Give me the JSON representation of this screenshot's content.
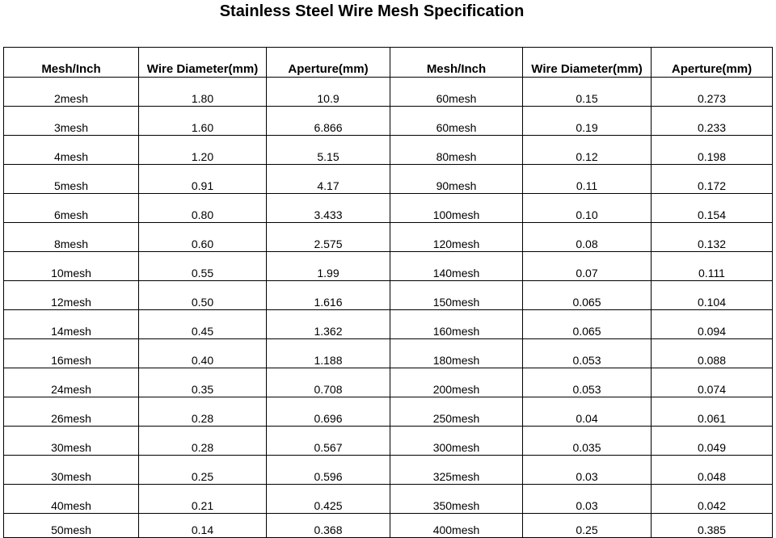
{
  "title": "Stainless Steel Wire Mesh Specification",
  "headers": [
    "Mesh/Inch",
    "Wire Diameter(mm)",
    "Aperture(mm)",
    "Mesh/Inch",
    "Wire Diameter(mm)",
    "Aperture(mm)"
  ],
  "rows": [
    [
      "2mesh",
      "1.80",
      "10.9",
      "60mesh",
      "0.15",
      "0.273"
    ],
    [
      "3mesh",
      "1.60",
      "6.866",
      "60mesh",
      "0.19",
      "0.233"
    ],
    [
      "4mesh",
      "1.20",
      "5.15",
      "80mesh",
      "0.12",
      "0.198"
    ],
    [
      "5mesh",
      "0.91",
      "4.17",
      "90mesh",
      "0.11",
      "0.172"
    ],
    [
      "6mesh",
      "0.80",
      "3.433",
      "100mesh",
      "0.10",
      "0.154"
    ],
    [
      "8mesh",
      "0.60",
      "2.575",
      "120mesh",
      "0.08",
      "0.132"
    ],
    [
      "10mesh",
      "0.55",
      "1.99",
      "140mesh",
      "0.07",
      "0.111"
    ],
    [
      "12mesh",
      "0.50",
      "1.616",
      "150mesh",
      "0.065",
      "0.104"
    ],
    [
      "14mesh",
      "0.45",
      "1.362",
      "160mesh",
      "0.065",
      "0.094"
    ],
    [
      "16mesh",
      "0.40",
      "1.188",
      "180mesh",
      "0.053",
      "0.088"
    ],
    [
      "24mesh",
      "0.35",
      "0.708",
      "200mesh",
      "0.053",
      "0.074"
    ],
    [
      "26mesh",
      "0.28",
      "0.696",
      "250mesh",
      "0.04",
      "0.061"
    ],
    [
      "30mesh",
      "0.28",
      "0.567",
      "300mesh",
      "0.035",
      "0.049"
    ],
    [
      "30mesh",
      "0.25",
      "0.596",
      "325mesh",
      "0.03",
      "0.048"
    ],
    [
      "40mesh",
      "0.21",
      "0.425",
      "350mesh",
      "0.03",
      "0.042"
    ],
    [
      "50mesh",
      "0.14",
      "0.368",
      "400mesh",
      "0.25",
      "0.385"
    ]
  ]
}
